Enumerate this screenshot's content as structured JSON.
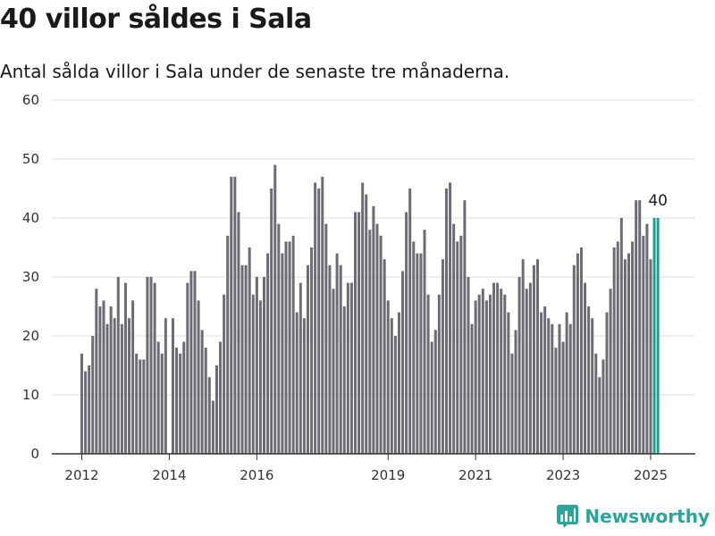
{
  "title": "40 villor såldes i Sala",
  "subtitle": "Antal sålda villor i Sala under de senaste tre månaderna.",
  "brand": {
    "name": "Newsworthy"
  },
  "colors": {
    "bar": "#6d6c72",
    "highlight": "#1f9e93",
    "grid": "#dcdcdc",
    "axis": "#333333",
    "brand": "#2aa59a"
  },
  "chart_data": {
    "type": "bar",
    "title": "40 villor såldes i Sala",
    "subtitle": "Antal sålda villor i Sala under de senaste tre månaderna.",
    "xlabel": "",
    "ylabel": "",
    "ylim": [
      0,
      60
    ],
    "yticks": [
      0,
      10,
      20,
      30,
      40,
      50,
      60
    ],
    "grid": true,
    "legend": "none",
    "start": "2012-01",
    "xticks": [
      {
        "label": "2012",
        "index": 0
      },
      {
        "label": "2014",
        "index": 24
      },
      {
        "label": "2016",
        "index": 48
      },
      {
        "label": "2019",
        "index": 84
      },
      {
        "label": "2021",
        "index": 108
      },
      {
        "label": "2023",
        "index": 132
      },
      {
        "label": "2025",
        "index": 156
      }
    ],
    "values": [
      17,
      14,
      15,
      20,
      28,
      25,
      26,
      22,
      25,
      23,
      30,
      22,
      29,
      23,
      26,
      17,
      16,
      16,
      30,
      30,
      29,
      19,
      17,
      23,
      0,
      23,
      18,
      17,
      19,
      29,
      31,
      31,
      26,
      21,
      18,
      13,
      9,
      15,
      19,
      27,
      37,
      47,
      47,
      41,
      32,
      32,
      35,
      27,
      30,
      26,
      30,
      34,
      45,
      49,
      39,
      34,
      36,
      36,
      37,
      24,
      29,
      23,
      32,
      35,
      46,
      45,
      47,
      39,
      32,
      28,
      34,
      32,
      25,
      29,
      29,
      41,
      41,
      46,
      44,
      38,
      42,
      39,
      37,
      33,
      26,
      23,
      20,
      24,
      31,
      41,
      45,
      36,
      34,
      34,
      38,
      27,
      19,
      21,
      27,
      33,
      45,
      46,
      39,
      36,
      37,
      43,
      30,
      22,
      26,
      27,
      28,
      26,
      27,
      29,
      29,
      28,
      27,
      24,
      17,
      21,
      30,
      33,
      28,
      29,
      32,
      33,
      24,
      25,
      23,
      22,
      18,
      22,
      19,
      24,
      22,
      32,
      34,
      35,
      29,
      25,
      23,
      17,
      13,
      16,
      24,
      28,
      35,
      36,
      40,
      33,
      34,
      36,
      43,
      43,
      37,
      39,
      33,
      40,
      40
    ],
    "highlight_last": 2,
    "annotation": {
      "text": "40"
    }
  }
}
